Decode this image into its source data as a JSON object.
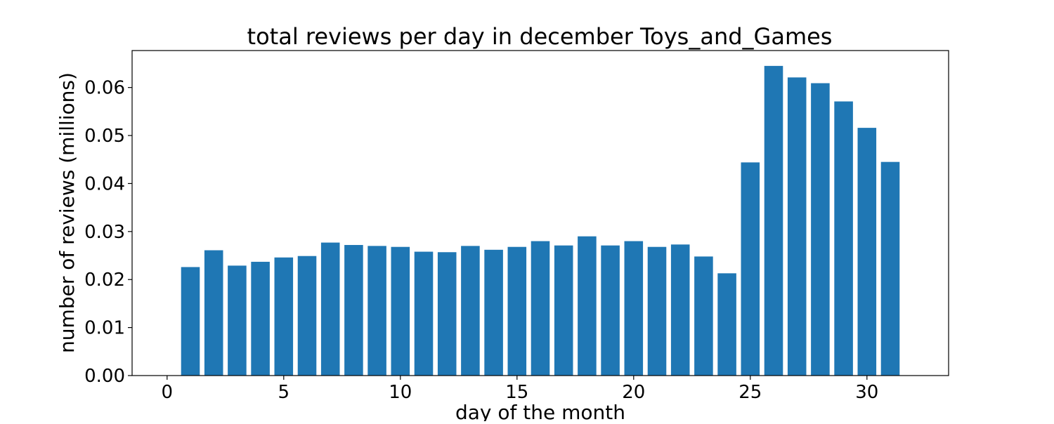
{
  "chart_data": {
    "type": "bar",
    "title": "total reviews per day in december Toys_and_Games",
    "xlabel": "day of the month",
    "ylabel": "number of reviews (millions)",
    "x": [
      1,
      2,
      3,
      4,
      5,
      6,
      7,
      8,
      9,
      10,
      11,
      12,
      13,
      14,
      15,
      16,
      17,
      18,
      19,
      20,
      21,
      22,
      23,
      24,
      25,
      26,
      27,
      28,
      29,
      30,
      31
    ],
    "values": [
      0.0226,
      0.0261,
      0.0229,
      0.0237,
      0.0246,
      0.0249,
      0.0277,
      0.0272,
      0.027,
      0.0268,
      0.0258,
      0.0257,
      0.027,
      0.0262,
      0.0268,
      0.028,
      0.0271,
      0.029,
      0.0271,
      0.028,
      0.0268,
      0.0273,
      0.0248,
      0.0213,
      0.0444,
      0.0645,
      0.0621,
      0.0609,
      0.0571,
      0.0516,
      0.0445
    ],
    "xlim": [
      -1.5,
      33.5
    ],
    "ylim": [
      0,
      0.0677
    ],
    "xticks": [
      0,
      5,
      10,
      15,
      20,
      25,
      30
    ],
    "xtick_labels": [
      "0",
      "5",
      "10",
      "15",
      "20",
      "25",
      "30"
    ],
    "yticks": [
      0,
      0.01,
      0.02,
      0.03,
      0.04,
      0.05,
      0.06
    ],
    "ytick_labels": [
      "0.00",
      "0.01",
      "0.02",
      "0.03",
      "0.04",
      "0.05",
      "0.06"
    ],
    "bar_color": "#1f77b4",
    "grid": false,
    "legend": false
  }
}
